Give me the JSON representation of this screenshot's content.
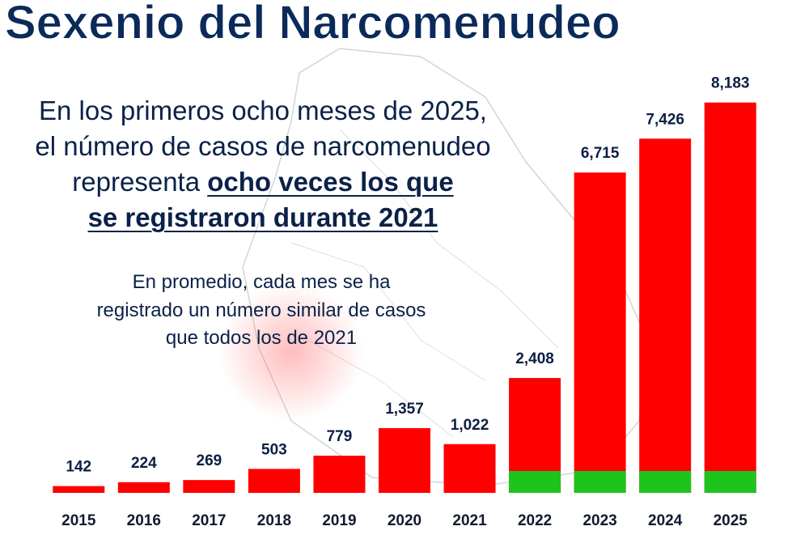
{
  "chart_data": {
    "type": "bar",
    "title": "Sexenio del Narcomenudeo",
    "annotation_1": [
      "En los primeros ocho meses de 2025,",
      "el número de casos de narcomenudeo",
      "representa"
    ],
    "annotation_1_emphasis": [
      "ocho veces los que",
      "se registraron durante 2021"
    ],
    "annotation_2": [
      "En promedio, cada mes se ha",
      "registrado un número similar de casos",
      "que todos los de 2021"
    ],
    "categories": [
      "2015",
      "2016",
      "2017",
      "2018",
      "2019",
      "2020",
      "2021",
      "2022",
      "2023",
      "2024",
      "2025"
    ],
    "values": [
      142,
      224,
      269,
      503,
      779,
      1357,
      1022,
      2408,
      6715,
      7426,
      8183
    ],
    "value_labels": [
      "142",
      "224",
      "269",
      "503",
      "779",
      "1,357",
      "1,022",
      "2,408",
      "6,715",
      "7,426",
      "8,183"
    ],
    "color": "#ff0000",
    "accent_color": "#1ec41e",
    "ylim": [
      0,
      8500
    ]
  }
}
